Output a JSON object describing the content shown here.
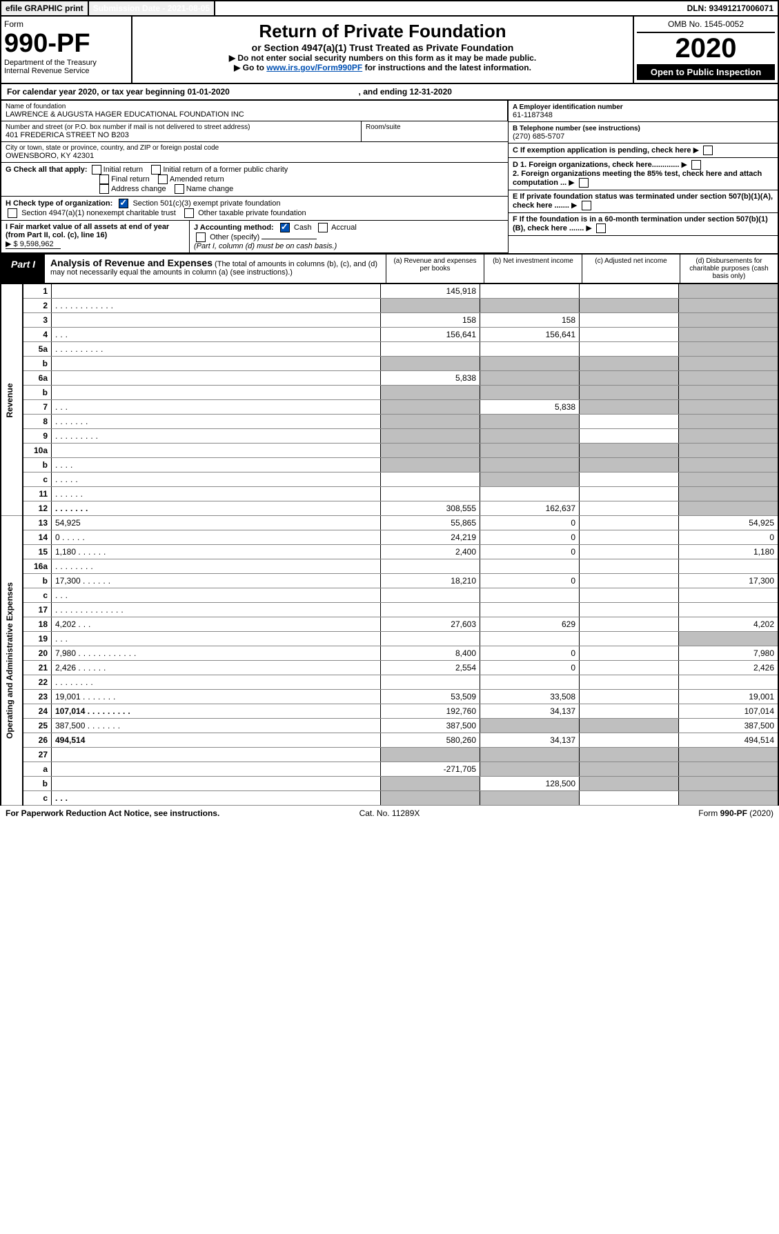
{
  "topbar": {
    "efile": "efile GRAPHIC print",
    "subdate_lbl": "Submission Date - 2021-08-05",
    "dln": "DLN: 93491217006071"
  },
  "header": {
    "form": "Form",
    "formno": "990-PF",
    "dept": "Department of the Treasury",
    "irs": "Internal Revenue Service",
    "title": "Return of Private Foundation",
    "subtitle": "or Section 4947(a)(1) Trust Treated as Private Foundation",
    "note1": "▶ Do not enter social security numbers on this form as it may be made public.",
    "note2_pre": "▶ Go to ",
    "note2_link": "www.irs.gov/Form990PF",
    "note2_post": " for instructions and the latest information.",
    "omb": "OMB No. 1545-0052",
    "year": "2020",
    "open": "Open to Public Inspection"
  },
  "cal": {
    "pre": "For calendar year 2020, or tax year beginning ",
    "begin": "01-01-2020",
    "mid": " , and ending ",
    "end": "12-31-2020"
  },
  "id": {
    "name_lbl": "Name of foundation",
    "name": "LAWRENCE & AUGUSTA HAGER EDUCATIONAL FOUNDATION INC",
    "addr_lbl": "Number and street (or P.O. box number if mail is not delivered to street address)",
    "addr": "401 FREDERICA STREET NO B203",
    "room_lbl": "Room/suite",
    "city_lbl": "City or town, state or province, country, and ZIP or foreign postal code",
    "city": "OWENSBORO, KY  42301",
    "A_lbl": "A Employer identification number",
    "A": "61-1187348",
    "B_lbl": "B Telephone number (see instructions)",
    "B": "(270) 685-5707",
    "C": "C If exemption application is pending, check here",
    "D1": "D 1. Foreign organizations, check here.............",
    "D2": "2. Foreign organizations meeting the 85% test, check here and attach computation ...",
    "E": "E  If private foundation status was terminated under section 507(b)(1)(A), check here .......",
    "F": "F  If the foundation is in a 60-month termination under section 507(b)(1)(B), check here .......",
    "G_lbl": "G Check all that apply:",
    "G_opts": [
      "Initial return",
      "Initial return of a former public charity",
      "Final return",
      "Amended return",
      "Address change",
      "Name change"
    ],
    "H_lbl": "H Check type of organization:",
    "H1": "Section 501(c)(3) exempt private foundation",
    "H2": "Section 4947(a)(1) nonexempt charitable trust",
    "H3": "Other taxable private foundation",
    "I_lbl": "I Fair market value of all assets at end of year (from Part II, col. (c), line 16)",
    "I_val": "▶ $  9,598,962",
    "J_lbl": "J Accounting method:",
    "J_cash": "Cash",
    "J_acc": "Accrual",
    "J_oth": "Other (specify)",
    "J_note": "(Part I, column (d) must be on cash basis.)"
  },
  "part1": {
    "tag": "Part I",
    "title": "Analysis of Revenue and Expenses",
    "title_sub": " (The total of amounts in columns (b), (c), and (d) may not necessarily equal the amounts in column (a) (see instructions).)",
    "cols": {
      "a": "(a)   Revenue and expenses per books",
      "b": "(b)  Net investment income",
      "c": "(c)  Adjusted net income",
      "d": "(d)  Disbursements for charitable purposes (cash basis only)"
    }
  },
  "rows": [
    {
      "n": "1",
      "d": "",
      "a": "145,918",
      "b": "",
      "c": "",
      "shade": [
        "d"
      ]
    },
    {
      "n": "2",
      "d": "",
      "dots": "............",
      "a": "",
      "b": "",
      "c": "",
      "shade": [
        "a",
        "b",
        "c",
        "d"
      ]
    },
    {
      "n": "3",
      "d": "",
      "a": "158",
      "b": "158",
      "c": "",
      "shade": [
        "d"
      ]
    },
    {
      "n": "4",
      "d": "",
      "dots": "...",
      "a": "156,641",
      "b": "156,641",
      "c": "",
      "shade": [
        "d"
      ]
    },
    {
      "n": "5a",
      "d": "",
      "dots": "..........",
      "a": "",
      "b": "",
      "c": "",
      "shade": [
        "d"
      ]
    },
    {
      "n": "b",
      "d": "",
      "a": "",
      "b": "",
      "c": "",
      "shade": [
        "a",
        "b",
        "c",
        "d"
      ]
    },
    {
      "n": "6a",
      "d": "",
      "a": "5,838",
      "b": "",
      "c": "",
      "shade": [
        "b",
        "c",
        "d"
      ]
    },
    {
      "n": "b",
      "d": "",
      "a": "",
      "b": "",
      "c": "",
      "shade": [
        "a",
        "b",
        "c",
        "d"
      ]
    },
    {
      "n": "7",
      "d": "",
      "dots": "...",
      "a": "",
      "b": "5,838",
      "c": "",
      "shade": [
        "a",
        "c",
        "d"
      ]
    },
    {
      "n": "8",
      "d": "",
      "dots": ".......",
      "a": "",
      "b": "",
      "c": "",
      "shade": [
        "a",
        "b",
        "d"
      ]
    },
    {
      "n": "9",
      "d": "",
      "dots": ".........",
      "a": "",
      "b": "",
      "c": "",
      "shade": [
        "a",
        "b",
        "d"
      ]
    },
    {
      "n": "10a",
      "d": "",
      "a": "",
      "b": "",
      "c": "",
      "shade": [
        "a",
        "b",
        "c",
        "d"
      ]
    },
    {
      "n": "b",
      "d": "",
      "dots": "....",
      "a": "",
      "b": "",
      "c": "",
      "shade": [
        "a",
        "b",
        "c",
        "d"
      ]
    },
    {
      "n": "c",
      "d": "",
      "dots": ".....",
      "a": "",
      "b": "",
      "c": "",
      "shade": [
        "b",
        "d"
      ]
    },
    {
      "n": "11",
      "d": "",
      "dots": "......",
      "a": "",
      "b": "",
      "c": "",
      "shade": [
        "d"
      ]
    },
    {
      "n": "12",
      "d": "",
      "dots": ".......",
      "a": "308,555",
      "b": "162,637",
      "c": "",
      "shade": [
        "d"
      ],
      "bold": true
    },
    {
      "n": "13",
      "d": "54,925",
      "a": "55,865",
      "b": "0",
      "c": ""
    },
    {
      "n": "14",
      "d": "0",
      "dots": ".....",
      "a": "24,219",
      "b": "0",
      "c": ""
    },
    {
      "n": "15",
      "d": "1,180",
      "dots": "......",
      "a": "2,400",
      "b": "0",
      "c": ""
    },
    {
      "n": "16a",
      "d": "",
      "dots": "........",
      "a": "",
      "b": "",
      "c": ""
    },
    {
      "n": "b",
      "d": "17,300",
      "dots": "......",
      "a": "18,210",
      "b": "0",
      "c": ""
    },
    {
      "n": "c",
      "d": "",
      "dots": "...",
      "a": "",
      "b": "",
      "c": ""
    },
    {
      "n": "17",
      "d": "",
      "dots": "..............",
      "a": "",
      "b": "",
      "c": ""
    },
    {
      "n": "18",
      "d": "4,202",
      "dots": "...",
      "a": "27,603",
      "b": "629",
      "c": ""
    },
    {
      "n": "19",
      "d": "",
      "dots": "...",
      "a": "",
      "b": "",
      "c": "",
      "shade": [
        "d"
      ]
    },
    {
      "n": "20",
      "d": "7,980",
      "dots": "............",
      "a": "8,400",
      "b": "0",
      "c": ""
    },
    {
      "n": "21",
      "d": "2,426",
      "dots": "......",
      "a": "2,554",
      "b": "0",
      "c": ""
    },
    {
      "n": "22",
      "d": "",
      "dots": "........",
      "a": "",
      "b": "",
      "c": ""
    },
    {
      "n": "23",
      "d": "19,001",
      "dots": ".......",
      "a": "53,509",
      "b": "33,508",
      "c": ""
    },
    {
      "n": "24",
      "d": "107,014",
      "dots": ".........",
      "a": "192,760",
      "b": "34,137",
      "c": "",
      "bold": true
    },
    {
      "n": "25",
      "d": "387,500",
      "dots": ".......",
      "a": "387,500",
      "b": "",
      "c": "",
      "shade": [
        "b",
        "c"
      ]
    },
    {
      "n": "26",
      "d": "494,514",
      "a": "580,260",
      "b": "34,137",
      "c": "",
      "bold": true
    },
    {
      "n": "27",
      "d": "",
      "a": "",
      "b": "",
      "c": "",
      "shade": [
        "a",
        "b",
        "c",
        "d"
      ]
    },
    {
      "n": "a",
      "d": "",
      "a": "-271,705",
      "b": "",
      "c": "",
      "shade": [
        "b",
        "c",
        "d"
      ],
      "bold": true
    },
    {
      "n": "b",
      "d": "",
      "a": "",
      "b": "128,500",
      "c": "",
      "shade": [
        "a",
        "c",
        "d"
      ],
      "bold": true
    },
    {
      "n": "c",
      "d": "",
      "dots": "...",
      "a": "",
      "b": "",
      "c": "",
      "shade": [
        "a",
        "b",
        "d"
      ],
      "bold": true
    }
  ],
  "sidebars": {
    "rev": "Revenue",
    "exp": "Operating and Administrative Expenses"
  },
  "foot": {
    "l": "For Paperwork Reduction Act Notice, see instructions.",
    "m": "Cat. No. 11289X",
    "r": "Form 990-PF (2020)"
  }
}
